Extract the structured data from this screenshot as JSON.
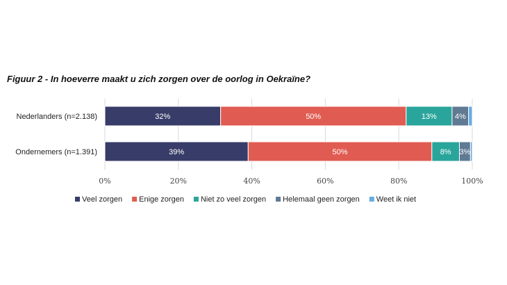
{
  "chart_data": {
    "type": "bar",
    "orientation": "horizontal",
    "stacked": true,
    "title": "Figuur 2  - In hoeverre maakt u zich zorgen over de oorlog in Oekraïne?",
    "categories": [
      "Nederlanders (n=2.138)",
      "Ondernemers (n=1.391)"
    ],
    "series": [
      {
        "name": "Veel zorgen",
        "color": "#383c68",
        "values": [
          31.5,
          39
        ],
        "labels": [
          "32%",
          "39%"
        ]
      },
      {
        "name": "Enige zorgen",
        "color": "#e05c52",
        "values": [
          50.5,
          50
        ],
        "labels": [
          "50%",
          "50%"
        ]
      },
      {
        "name": "Niet zo veel zorgen",
        "color": "#2aa59b",
        "values": [
          12.5,
          7.5
        ],
        "labels": [
          "13%",
          "8%"
        ]
      },
      {
        "name": "Helemaal geen zorgen",
        "color": "#5f7a92",
        "values": [
          4.5,
          3
        ],
        "labels": [
          "4%",
          "3%"
        ]
      },
      {
        "name": "Weet ik niet",
        "color": "#67abe0",
        "values": [
          1,
          0.5
        ],
        "labels": [
          "1%",
          "1%"
        ]
      }
    ],
    "x_ticks": [
      "0%",
      "20%",
      "40%",
      "60%",
      "80%",
      "100%"
    ],
    "xlim": [
      0,
      100
    ],
    "grid": true,
    "legend_position": "bottom"
  }
}
